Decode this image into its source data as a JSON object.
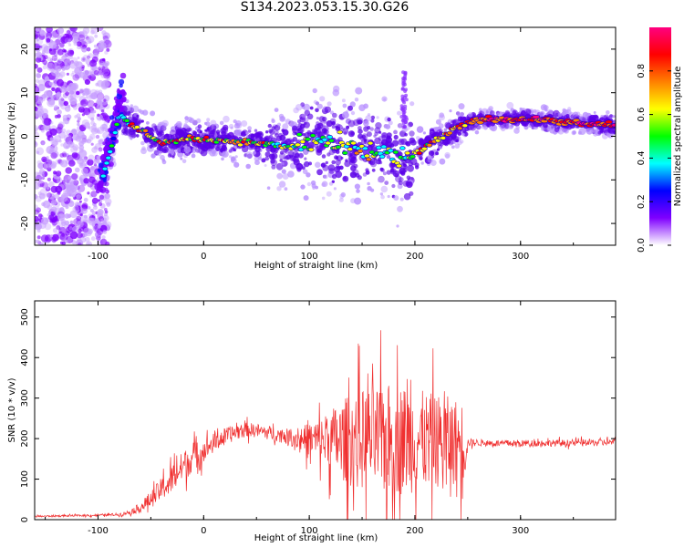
{
  "title": "S134.2023.053.15.30.G26",
  "chart_data": [
    {
      "type": "heatmap",
      "description_axes": true,
      "xlabel": "Height of straight line (km)",
      "ylabel": "Frequency (Hz)",
      "xlim": [
        -160,
        390
      ],
      "ylim": [
        -25,
        25
      ],
      "xticks": [
        -100,
        0,
        100,
        200,
        300
      ],
      "yticks": [
        20,
        10,
        0,
        -10,
        -20
      ],
      "colorbar": {
        "label": "Normalized spectral amplitude",
        "range": [
          0.0,
          1.0
        ],
        "ticks": [
          "0.0",
          "0.2",
          "0.4",
          "0.6",
          "0.8"
        ],
        "colormap": [
          "#ffffff",
          "#7f00ff",
          "#0000ff",
          "#00ffff",
          "#00ff00",
          "#ffff00",
          "#ff8000",
          "#ff0000",
          "#ff0080"
        ]
      },
      "ridge": [
        {
          "x": -95,
          "y": -9
        },
        {
          "x": -88,
          "y": -3
        },
        {
          "x": -80,
          "y": 5
        },
        {
          "x": -72,
          "y": 3
        },
        {
          "x": -60,
          "y": 1.5
        },
        {
          "x": -40,
          "y": -1.5
        },
        {
          "x": -10,
          "y": -0.5
        },
        {
          "x": 20,
          "y": -1
        },
        {
          "x": 50,
          "y": -1.5
        },
        {
          "x": 80,
          "y": -2.5
        },
        {
          "x": 110,
          "y": -1
        },
        {
          "x": 140,
          "y": -3
        },
        {
          "x": 170,
          "y": -4
        },
        {
          "x": 190,
          "y": -6
        },
        {
          "x": 200,
          "y": -4
        },
        {
          "x": 220,
          "y": -1
        },
        {
          "x": 240,
          "y": 2
        },
        {
          "x": 260,
          "y": 3.8
        },
        {
          "x": 290,
          "y": 4
        },
        {
          "x": 320,
          "y": 3.8
        },
        {
          "x": 350,
          "y": 3
        },
        {
          "x": 390,
          "y": 2.5
        }
      ]
    },
    {
      "type": "line",
      "color": "#f03030",
      "xlabel": "Height of straight line (km)",
      "ylabel": "SNR (10 * v/v)",
      "xlim": [
        -160,
        390
      ],
      "ylim": [
        0,
        540
      ],
      "xticks": [
        -100,
        0,
        100,
        200,
        300
      ],
      "yticks": [
        0,
        100,
        200,
        300,
        400,
        500
      ],
      "series": [
        {
          "x": [
            -160,
            -140,
            -120,
            -100,
            -80,
            -70,
            -60,
            -50,
            -40,
            -30,
            -20,
            -10,
            0,
            10,
            20,
            30,
            40,
            50,
            60,
            70,
            80,
            90,
            100,
            110,
            120,
            130,
            140,
            150,
            160,
            170,
            180,
            190,
            200,
            210,
            220,
            230,
            240,
            248,
            250,
            260,
            280,
            300,
            320,
            340,
            360,
            380,
            390
          ],
          "y": [
            8,
            9,
            10,
            11,
            13,
            18,
            30,
            50,
            75,
            100,
            130,
            155,
            170,
            190,
            205,
            215,
            222,
            220,
            215,
            210,
            205,
            200,
            198,
            197,
            196,
            196,
            197,
            198,
            198,
            198,
            198,
            198,
            197,
            196,
            195,
            194,
            193,
            192,
            190,
            190,
            188,
            188,
            189,
            189,
            190,
            191,
            191
          ],
          "spread": [
            3,
            3,
            3,
            4,
            5,
            8,
            18,
            30,
            40,
            50,
            55,
            50,
            40,
            35,
            30,
            28,
            25,
            25,
            25,
            25,
            28,
            40,
            60,
            80,
            110,
            140,
            165,
            180,
            185,
            195,
            200,
            195,
            185,
            170,
            165,
            160,
            150,
            140,
            15,
            12,
            12,
            12,
            12,
            12,
            12,
            12,
            12
          ]
        }
      ]
    }
  ]
}
